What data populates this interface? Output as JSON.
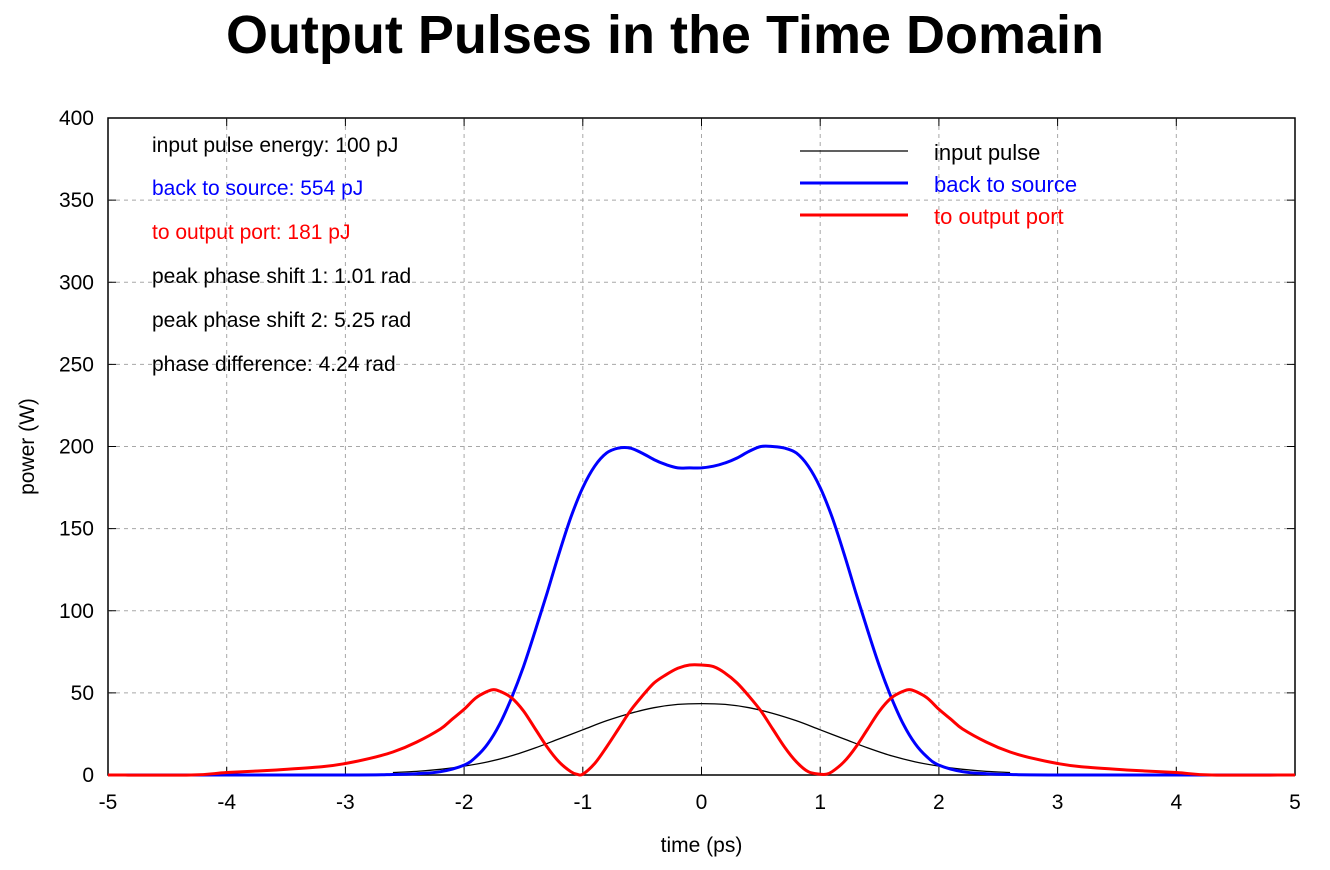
{
  "chart_data": {
    "type": "line",
    "title": "Output Pulses in the Time Domain",
    "xlabel": "time (ps)",
    "ylabel": "power (W)",
    "xlim": [
      -5,
      5
    ],
    "ylim": [
      0,
      400
    ],
    "xticks": [
      -5,
      -4,
      -3,
      -2,
      -1,
      0,
      1,
      2,
      3,
      4,
      5
    ],
    "yticks": [
      0,
      50,
      100,
      150,
      200,
      250,
      300,
      350,
      400
    ],
    "grid": true,
    "legend_position": "top-right",
    "annotations": [
      {
        "text": "input pulse energy: 100 pJ",
        "color": "#000000"
      },
      {
        "text": "back to source: 554 pJ",
        "color": "#0000ff"
      },
      {
        "text": "to output port: 181 pJ",
        "color": "#ff0000"
      },
      {
        "text": "peak phase shift 1: 1.01 rad",
        "color": "#000000"
      },
      {
        "text": "peak phase shift 2: 5.25 rad",
        "color": "#000000"
      },
      {
        "text": "phase difference: 4.24 rad",
        "color": "#000000"
      }
    ],
    "series": [
      {
        "name": "input pulse",
        "color": "#000000",
        "width": "thin",
        "x": [
          -2.6,
          -2.4,
          -2.2,
          -2.0,
          -1.8,
          -1.6,
          -1.4,
          -1.2,
          -1.0,
          -0.8,
          -0.6,
          -0.4,
          -0.2,
          0.0,
          0.2,
          0.4,
          0.6,
          0.8,
          1.0,
          1.2,
          1.4,
          1.6,
          1.8,
          2.0,
          2.2,
          2.4,
          2.6
        ],
        "y": [
          1.5,
          2.2,
          3.5,
          5.4,
          8.0,
          11.7,
          16.5,
          22.0,
          27.5,
          33.0,
          37.5,
          41.0,
          43.0,
          43.5,
          43.0,
          41.0,
          37.5,
          33.0,
          27.5,
          22.0,
          16.5,
          11.7,
          8.0,
          5.4,
          3.5,
          2.2,
          1.5
        ]
      },
      {
        "name": "back to source",
        "color": "#0000ff",
        "width": "thick",
        "x": [
          -5.0,
          -3.0,
          -2.6,
          -2.4,
          -2.2,
          -2.0,
          -1.9,
          -1.8,
          -1.7,
          -1.6,
          -1.5,
          -1.4,
          -1.3,
          -1.2,
          -1.1,
          -1.0,
          -0.9,
          -0.8,
          -0.7,
          -0.6,
          -0.5,
          -0.4,
          -0.3,
          -0.2,
          -0.1,
          0.0,
          0.1,
          0.2,
          0.3,
          0.4,
          0.5,
          0.6,
          0.7,
          0.8,
          0.9,
          1.0,
          1.1,
          1.2,
          1.3,
          1.4,
          1.5,
          1.6,
          1.7,
          1.8,
          1.9,
          2.0,
          2.2,
          2.4,
          2.6,
          3.0,
          5.0
        ],
        "y": [
          0,
          0,
          0.3,
          0.8,
          2,
          6,
          11,
          19,
          31,
          47,
          66,
          88,
          111,
          135,
          157,
          175,
          188,
          196,
          199,
          199,
          196,
          192,
          189,
          187,
          187,
          187,
          188,
          190,
          193,
          197,
          200,
          200,
          199,
          196,
          188,
          175,
          157,
          135,
          111,
          88,
          66,
          47,
          31,
          19,
          11,
          6,
          2,
          0.8,
          0.3,
          0,
          0
        ]
      },
      {
        "name": "to output port",
        "color": "#ff0000",
        "width": "thick",
        "x": [
          -5.0,
          -4.3,
          -4.0,
          -3.6,
          -3.2,
          -3.0,
          -2.8,
          -2.6,
          -2.4,
          -2.2,
          -2.1,
          -2.0,
          -1.9,
          -1.8,
          -1.75,
          -1.7,
          -1.6,
          -1.5,
          -1.4,
          -1.3,
          -1.2,
          -1.1,
          -1.05,
          -1.0,
          -0.9,
          -0.8,
          -0.7,
          -0.6,
          -0.5,
          -0.4,
          -0.3,
          -0.2,
          -0.1,
          0.0,
          0.1,
          0.2,
          0.3,
          0.4,
          0.5,
          0.6,
          0.7,
          0.8,
          0.9,
          1.0,
          1.05,
          1.1,
          1.2,
          1.3,
          1.4,
          1.5,
          1.6,
          1.7,
          1.75,
          1.8,
          1.9,
          2.0,
          2.1,
          2.2,
          2.4,
          2.6,
          2.8,
          3.0,
          3.2,
          3.6,
          4.0,
          4.3,
          5.0
        ],
        "y": [
          0,
          0,
          1.5,
          3,
          5,
          7,
          10,
          14,
          20,
          28,
          34,
          40,
          47,
          51,
          52,
          51,
          47,
          39,
          28,
          17,
          8,
          2,
          0.5,
          0.5,
          7,
          17,
          28,
          39,
          48,
          56,
          61,
          65,
          67,
          67,
          66,
          62,
          56,
          48,
          39,
          28,
          17,
          8,
          2,
          0.5,
          0.5,
          2,
          8,
          17,
          28,
          39,
          47,
          51,
          52,
          51,
          47,
          40,
          34,
          28,
          20,
          14,
          10,
          7,
          5,
          3,
          1.5,
          0,
          0
        ]
      }
    ]
  }
}
